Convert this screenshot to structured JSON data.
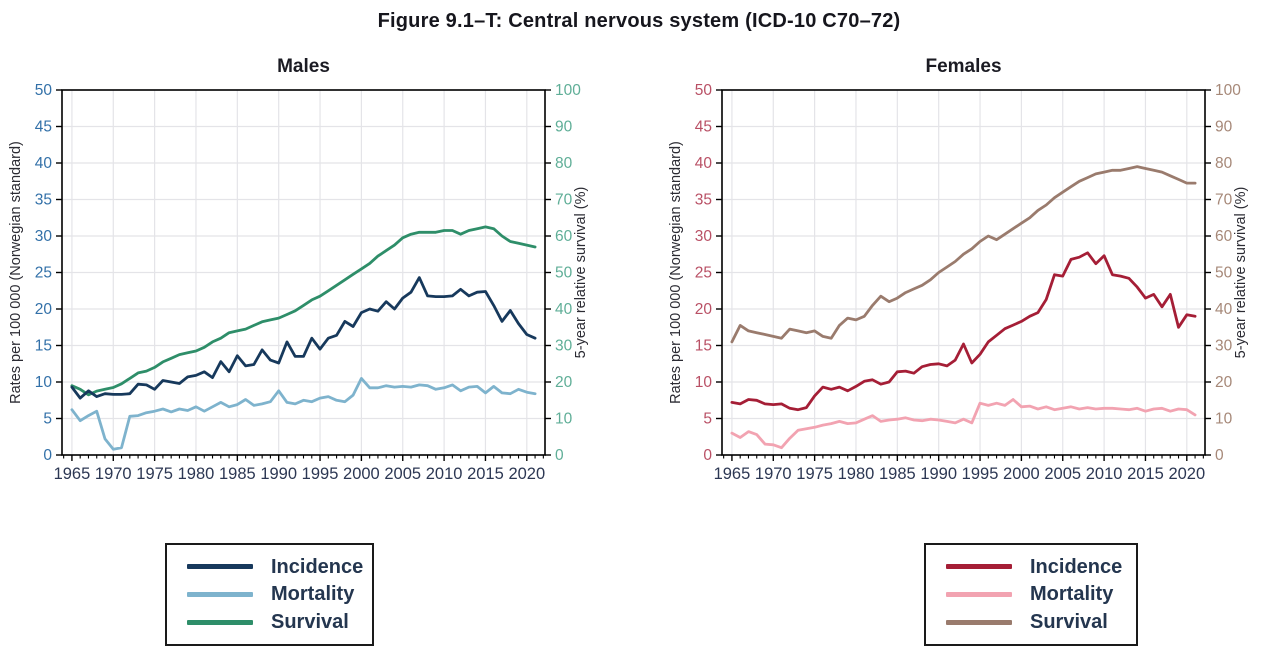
{
  "figure_title": "Figure 9.1–T: Central nervous system (ICD-10 C70–72)",
  "chart_data": [
    {
      "type": "line",
      "title": "Males",
      "legend_position": "below",
      "grid": true,
      "x": [
        1965,
        1966,
        1967,
        1968,
        1969,
        1970,
        1971,
        1972,
        1973,
        1974,
        1975,
        1976,
        1977,
        1978,
        1979,
        1980,
        1981,
        1982,
        1983,
        1984,
        1985,
        1986,
        1987,
        1988,
        1989,
        1990,
        1991,
        1992,
        1993,
        1994,
        1995,
        1996,
        1997,
        1998,
        1999,
        2000,
        2001,
        2002,
        2003,
        2004,
        2005,
        2006,
        2007,
        2008,
        2009,
        2010,
        2011,
        2012,
        2013,
        2014,
        2015,
        2016,
        2017,
        2018,
        2019,
        2020,
        2021
      ],
      "x_axis": {
        "range": [
          1963.8,
          2022.2
        ],
        "ticks": [
          1965,
          1970,
          1975,
          1980,
          1985,
          1990,
          1995,
          2000,
          2005,
          2010,
          2015,
          2020
        ],
        "tick_color": "#2c3753"
      },
      "left_axis": {
        "label": "Rates per 100 000 (Norwegian standard)",
        "range": [
          0,
          50
        ],
        "ticks": [
          0,
          5,
          10,
          15,
          20,
          25,
          30,
          35,
          40,
          45,
          50
        ],
        "tick_color": "#3270a8"
      },
      "right_axis": {
        "label": "5-year relative survival (%)",
        "range": [
          0,
          100
        ],
        "ticks": [
          0,
          10,
          20,
          30,
          40,
          50,
          60,
          70,
          80,
          90,
          100
        ],
        "tick_color": "#5fae97"
      },
      "series": [
        {
          "name": "Incidence",
          "axis": "left",
          "color": "#17395c",
          "values": [
            9.3,
            7.8,
            8.8,
            8.0,
            8.4,
            8.3,
            8.3,
            8.4,
            9.7,
            9.6,
            9.0,
            10.2,
            10.0,
            9.8,
            10.7,
            10.9,
            11.4,
            10.6,
            12.8,
            11.4,
            13.6,
            12.2,
            12.4,
            14.4,
            13.0,
            12.6,
            15.5,
            13.5,
            13.5,
            16.0,
            14.5,
            16.0,
            16.4,
            18.3,
            17.6,
            19.5,
            20.0,
            19.7,
            21.0,
            20.0,
            21.5,
            22.3,
            24.3,
            21.8,
            21.7,
            21.7,
            21.8,
            22.7,
            21.8,
            22.3,
            22.4,
            20.5,
            18.3,
            19.8,
            18.0,
            16.5,
            16.0
          ]
        },
        {
          "name": "Mortality",
          "axis": "left",
          "color": "#7eb3cd",
          "values": [
            6.2,
            4.7,
            5.4,
            6.0,
            2.2,
            0.8,
            1.0,
            5.3,
            5.4,
            5.8,
            6.0,
            6.3,
            5.9,
            6.3,
            6.1,
            6.6,
            6.0,
            6.6,
            7.2,
            6.6,
            6.9,
            7.6,
            6.8,
            7.0,
            7.3,
            8.8,
            7.2,
            7.0,
            7.5,
            7.3,
            7.8,
            8.0,
            7.5,
            7.3,
            8.2,
            10.5,
            9.2,
            9.2,
            9.5,
            9.3,
            9.4,
            9.3,
            9.6,
            9.5,
            9.0,
            9.2,
            9.6,
            8.8,
            9.3,
            9.4,
            8.5,
            9.4,
            8.5,
            8.4,
            9.0,
            8.6,
            8.4
          ]
        },
        {
          "name": "Survival",
          "axis": "right",
          "color": "#2e8e69",
          "values": [
            19,
            18,
            16.5,
            17.5,
            18,
            18.5,
            19.5,
            21,
            22.5,
            23,
            24,
            25.5,
            26.5,
            27.5,
            28,
            28.5,
            29.5,
            31,
            32,
            33.5,
            34,
            34.5,
            35.5,
            36.5,
            37,
            37.5,
            38.5,
            39.5,
            41,
            42.5,
            43.5,
            45,
            46.5,
            48,
            49.5,
            51,
            52.5,
            54.5,
            56,
            57.5,
            59.5,
            60.5,
            61,
            61,
            61,
            61.5,
            61.5,
            60.5,
            61.5,
            62,
            62.5,
            62,
            60,
            58.5,
            58,
            57.5,
            57
          ]
        }
      ]
    },
    {
      "type": "line",
      "title": "Females",
      "legend_position": "below",
      "grid": true,
      "x": [
        1965,
        1966,
        1967,
        1968,
        1969,
        1970,
        1971,
        1972,
        1973,
        1974,
        1975,
        1976,
        1977,
        1978,
        1979,
        1980,
        1981,
        1982,
        1983,
        1984,
        1985,
        1986,
        1987,
        1988,
        1989,
        1990,
        1991,
        1992,
        1993,
        1994,
        1995,
        1996,
        1997,
        1998,
        1999,
        2000,
        2001,
        2002,
        2003,
        2004,
        2005,
        2006,
        2007,
        2008,
        2009,
        2010,
        2011,
        2012,
        2013,
        2014,
        2015,
        2016,
        2017,
        2018,
        2019,
        2020,
        2021
      ],
      "x_axis": {
        "range": [
          1963.8,
          2022.2
        ],
        "ticks": [
          1965,
          1970,
          1975,
          1980,
          1985,
          1990,
          1995,
          2000,
          2005,
          2010,
          2015,
          2020
        ],
        "tick_color": "#2c3753"
      },
      "left_axis": {
        "label": "Rates per 100 000 (Norwegian standard)",
        "range": [
          0,
          50
        ],
        "ticks": [
          0,
          5,
          10,
          15,
          20,
          25,
          30,
          35,
          40,
          45,
          50
        ],
        "tick_color": "#b95065"
      },
      "right_axis": {
        "label": "5-year relative survival (%)",
        "range": [
          0,
          100
        ],
        "ticks": [
          0,
          10,
          20,
          30,
          40,
          50,
          60,
          70,
          80,
          90,
          100
        ],
        "tick_color": "#a68878"
      },
      "series": [
        {
          "name": "Incidence",
          "axis": "left",
          "color": "#a51e36",
          "values": [
            7.2,
            7.0,
            7.6,
            7.5,
            7.0,
            6.9,
            7.0,
            6.4,
            6.2,
            6.5,
            8.1,
            9.3,
            9.0,
            9.3,
            8.8,
            9.4,
            10.1,
            10.3,
            9.7,
            10.0,
            11.4,
            11.5,
            11.2,
            12.1,
            12.4,
            12.5,
            12.2,
            13.0,
            15.2,
            12.6,
            13.8,
            15.5,
            16.4,
            17.3,
            17.8,
            18.3,
            19.0,
            19.5,
            21.3,
            24.7,
            24.5,
            26.8,
            27.1,
            27.7,
            26.2,
            27.3,
            24.7,
            24.5,
            24.2,
            23.0,
            21.5,
            22.0,
            20.3,
            22.0,
            17.5,
            19.2,
            19.0
          ]
        },
        {
          "name": "Mortality",
          "axis": "left",
          "color": "#f2a3b1",
          "values": [
            3.0,
            2.4,
            3.2,
            2.8,
            1.5,
            1.4,
            1.0,
            2.3,
            3.4,
            3.6,
            3.8,
            4.1,
            4.3,
            4.6,
            4.3,
            4.4,
            4.9,
            5.4,
            4.6,
            4.8,
            4.9,
            5.1,
            4.8,
            4.7,
            4.9,
            4.8,
            4.6,
            4.4,
            4.9,
            4.4,
            7.1,
            6.8,
            7.1,
            6.8,
            7.6,
            6.6,
            6.7,
            6.3,
            6.6,
            6.2,
            6.4,
            6.6,
            6.3,
            6.5,
            6.3,
            6.4,
            6.4,
            6.3,
            6.2,
            6.4,
            6.0,
            6.3,
            6.4,
            6.0,
            6.3,
            6.2,
            5.5
          ]
        },
        {
          "name": "Survival",
          "axis": "right",
          "color": "#9a7b6d",
          "values": [
            31,
            35.5,
            34,
            33.5,
            33,
            32.5,
            32,
            34.5,
            34,
            33.5,
            34,
            32.5,
            32,
            35.5,
            37.5,
            37,
            38,
            41,
            43.5,
            42,
            43,
            44.5,
            45.5,
            46.5,
            48,
            50,
            51.5,
            53,
            55,
            56.5,
            58.5,
            60,
            59,
            60.5,
            62,
            63.5,
            65,
            67,
            68.5,
            70.5,
            72,
            73.5,
            75,
            76,
            77,
            77.5,
            78,
            78,
            78.5,
            79,
            78.5,
            78,
            77.5,
            76.5,
            75.5,
            74.5,
            74.5
          ]
        }
      ]
    }
  ]
}
